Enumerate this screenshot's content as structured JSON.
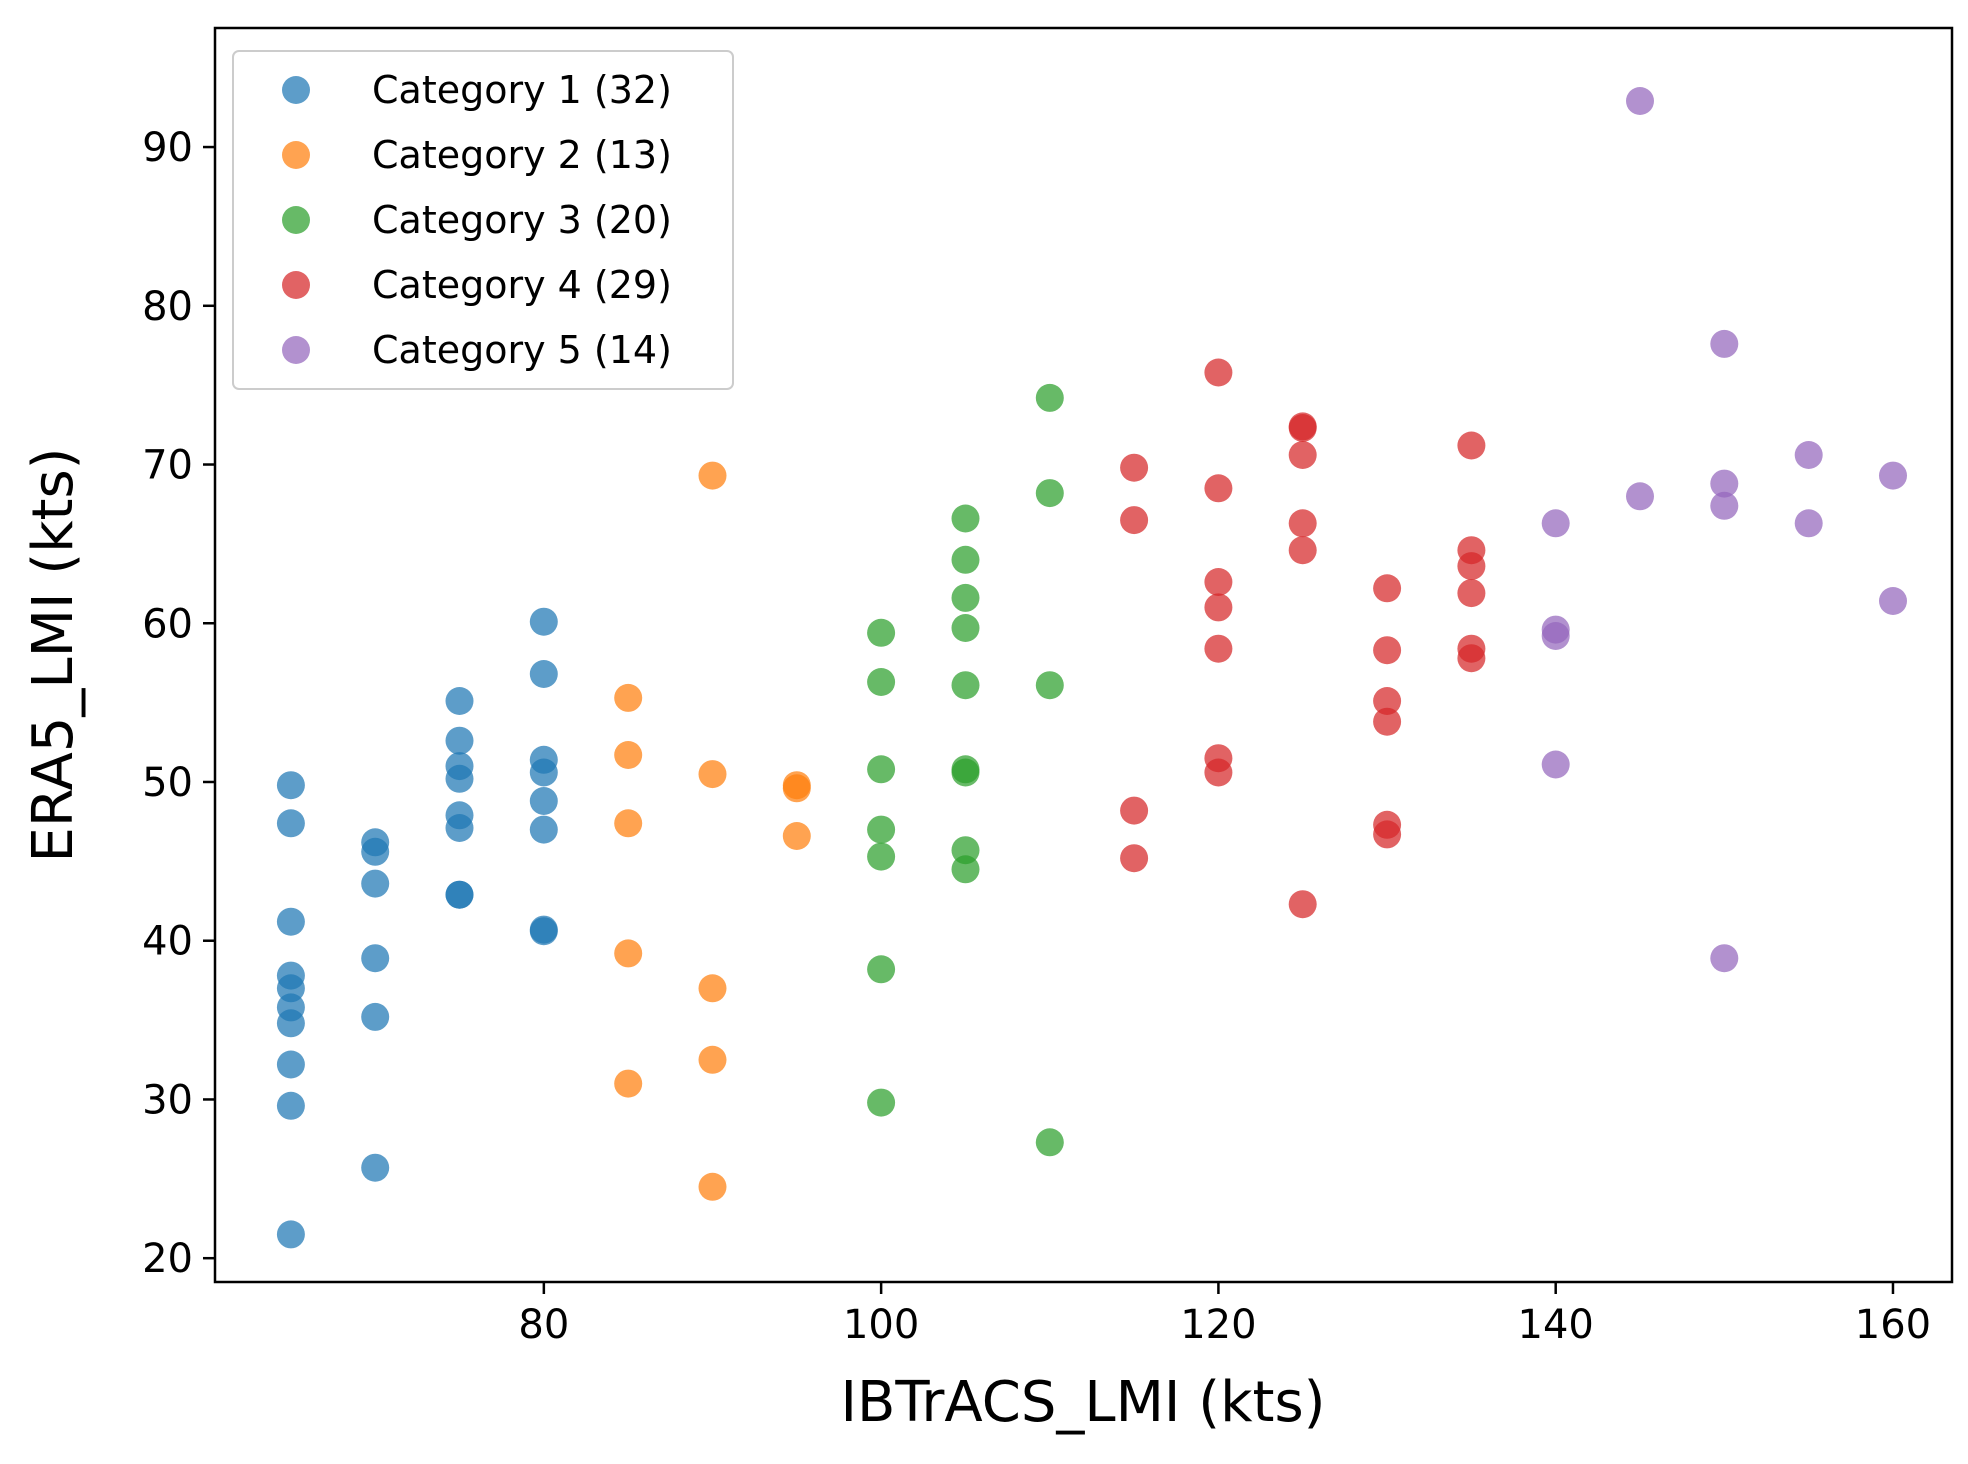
{
  "chart_data": {
    "type": "scatter",
    "title": "",
    "xlabel": "IBTrACS_LMI (kts)",
    "ylabel": "ERA5_LMI (kts)",
    "xlim": [
      60.5,
      163.5
    ],
    "ylim": [
      18.5,
      97.5
    ],
    "xticks": [
      80,
      100,
      120,
      140,
      160
    ],
    "yticks": [
      20,
      30,
      40,
      50,
      60,
      70,
      80,
      90
    ],
    "grid": false,
    "legend_position": "top-left",
    "series": [
      {
        "name": "Category 1",
        "label": "Category 1 (32)",
        "color": "#1f77b4",
        "points": [
          [
            65,
            21.5
          ],
          [
            65,
            29.6
          ],
          [
            65,
            32.2
          ],
          [
            65,
            34.8
          ],
          [
            65,
            35.8
          ],
          [
            65,
            37.0
          ],
          [
            65,
            37.8
          ],
          [
            65,
            41.2
          ],
          [
            65,
            47.4
          ],
          [
            65,
            49.8
          ],
          [
            70,
            25.7
          ],
          [
            70,
            35.2
          ],
          [
            70,
            38.9
          ],
          [
            70,
            43.6
          ],
          [
            70,
            45.6
          ],
          [
            70,
            46.2
          ],
          [
            75,
            42.9
          ],
          [
            75,
            42.9
          ],
          [
            75,
            47.1
          ],
          [
            75,
            47.9
          ],
          [
            75,
            50.2
          ],
          [
            75,
            51.0
          ],
          [
            75,
            52.6
          ],
          [
            75,
            55.1
          ],
          [
            80,
            40.6
          ],
          [
            80,
            40.7
          ],
          [
            80,
            47.0
          ],
          [
            80,
            48.8
          ],
          [
            80,
            50.6
          ],
          [
            80,
            51.4
          ],
          [
            80,
            56.8
          ],
          [
            80,
            60.1
          ]
        ]
      },
      {
        "name": "Category 2",
        "label": "Category 2 (13)",
        "color": "#ff7f0e",
        "points": [
          [
            85,
            31.0
          ],
          [
            85,
            39.2
          ],
          [
            85,
            47.4
          ],
          [
            85,
            51.7
          ],
          [
            85,
            55.3
          ],
          [
            90,
            24.5
          ],
          [
            90,
            32.5
          ],
          [
            90,
            37.0
          ],
          [
            90,
            50.5
          ],
          [
            90,
            69.3
          ],
          [
            95,
            46.6
          ],
          [
            95,
            49.6
          ],
          [
            95,
            49.8
          ]
        ]
      },
      {
        "name": "Category 3",
        "label": "Category 3 (20)",
        "color": "#2ca02c",
        "points": [
          [
            100,
            29.8
          ],
          [
            100,
            38.2
          ],
          [
            100,
            45.3
          ],
          [
            100,
            47.0
          ],
          [
            100,
            50.8
          ],
          [
            100,
            56.3
          ],
          [
            100,
            59.4
          ],
          [
            105,
            44.5
          ],
          [
            105,
            45.7
          ],
          [
            105,
            50.6
          ],
          [
            105,
            50.8
          ],
          [
            105,
            56.1
          ],
          [
            105,
            59.7
          ],
          [
            105,
            61.6
          ],
          [
            105,
            64.0
          ],
          [
            105,
            66.6
          ],
          [
            110,
            27.3
          ],
          [
            110,
            56.1
          ],
          [
            110,
            68.2
          ],
          [
            110,
            74.2
          ]
        ]
      },
      {
        "name": "Category 4",
        "label": "Category 4 (29)",
        "color": "#d62728",
        "points": [
          [
            115,
            45.2
          ],
          [
            115,
            48.2
          ],
          [
            115,
            66.5
          ],
          [
            115,
            69.8
          ],
          [
            120,
            50.6
          ],
          [
            120,
            51.5
          ],
          [
            120,
            58.4
          ],
          [
            120,
            61.0
          ],
          [
            120,
            62.6
          ],
          [
            120,
            68.5
          ],
          [
            120,
            75.8
          ],
          [
            125,
            42.3
          ],
          [
            125,
            64.6
          ],
          [
            125,
            66.3
          ],
          [
            125,
            70.6
          ],
          [
            125,
            72.3
          ],
          [
            125,
            72.4
          ],
          [
            130,
            46.7
          ],
          [
            130,
            47.3
          ],
          [
            130,
            53.8
          ],
          [
            130,
            55.1
          ],
          [
            130,
            58.3
          ],
          [
            130,
            62.2
          ],
          [
            135,
            57.8
          ],
          [
            135,
            58.4
          ],
          [
            135,
            61.9
          ],
          [
            135,
            63.6
          ],
          [
            135,
            64.6
          ],
          [
            135,
            71.2
          ]
        ]
      },
      {
        "name": "Category 5",
        "label": "Category 5 (14)",
        "color": "#9467bd",
        "points": [
          [
            140,
            51.1
          ],
          [
            140,
            59.2
          ],
          [
            140,
            59.6
          ],
          [
            140,
            66.3
          ],
          [
            145,
            68.0
          ],
          [
            145,
            92.9
          ],
          [
            150,
            38.9
          ],
          [
            150,
            67.4
          ],
          [
            150,
            68.8
          ],
          [
            150,
            77.6
          ],
          [
            155,
            66.3
          ],
          [
            155,
            70.6
          ],
          [
            160,
            61.4
          ],
          [
            160,
            69.3
          ]
        ]
      }
    ]
  }
}
